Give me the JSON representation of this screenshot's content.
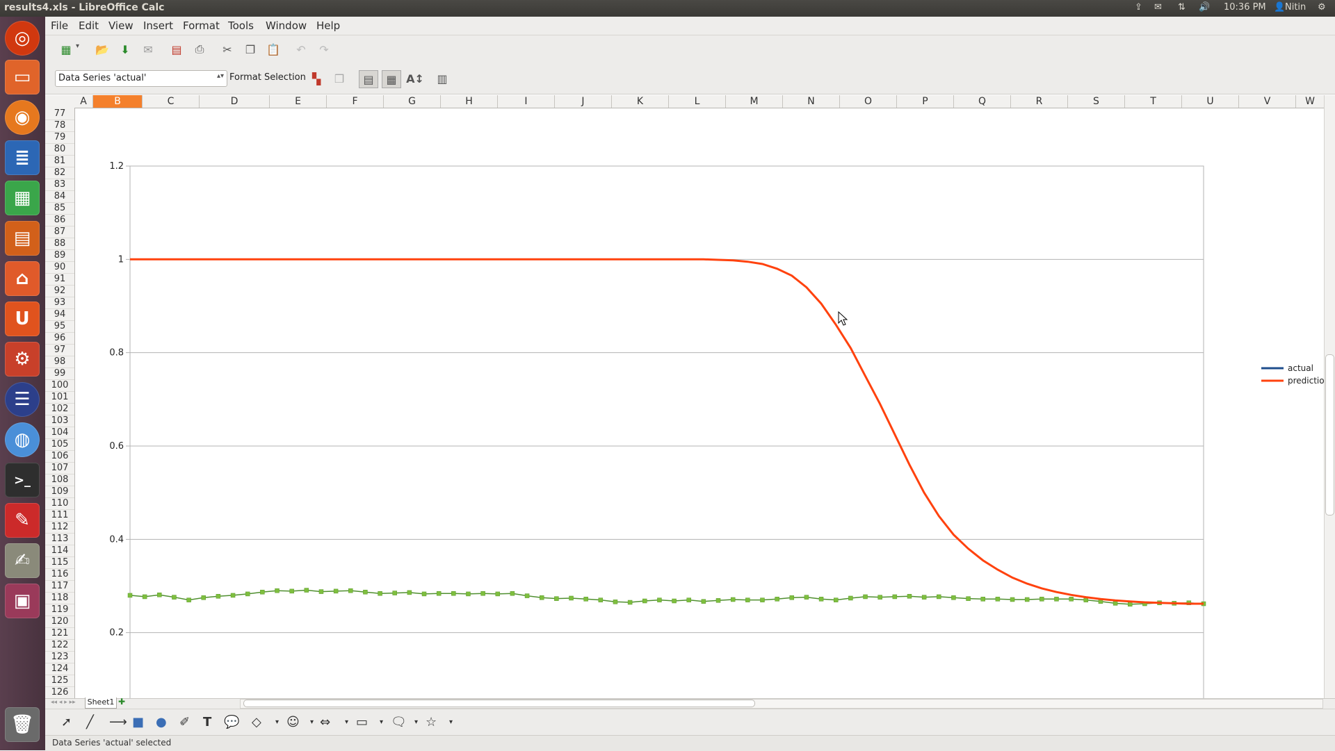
{
  "window": {
    "title": "results4.xls - LibreOffice Calc"
  },
  "tray": {
    "time": "10:36 PM",
    "user": "Nitin"
  },
  "menubar": [
    "File",
    "Edit",
    "View",
    "Insert",
    "Format",
    "Tools",
    "Window",
    "Help"
  ],
  "toolbar2": {
    "selected_series": "Data Series 'actual'",
    "format_selection_label": "Format Selection"
  },
  "columns": [
    "A",
    "B",
    "C",
    "D",
    "E",
    "F",
    "G",
    "H",
    "I",
    "J",
    "K",
    "L",
    "M",
    "N",
    "O",
    "P",
    "Q",
    "R",
    "S",
    "T",
    "U",
    "V",
    "W"
  ],
  "selected_column": "B",
  "rows": [
    "77",
    "78",
    "79",
    "80",
    "81",
    "82",
    "83",
    "84",
    "85",
    "86",
    "87",
    "88",
    "89",
    "90",
    "91",
    "92",
    "93",
    "94",
    "95",
    "96",
    "97",
    "98",
    "99",
    "100",
    "101",
    "102",
    "103",
    "104",
    "105",
    "106",
    "107",
    "108",
    "109",
    "110",
    "111",
    "112",
    "113",
    "114",
    "115",
    "116",
    "117",
    "118",
    "119",
    "120",
    "121",
    "122",
    "123",
    "124",
    "125",
    "126"
  ],
  "sheet_tab": "Sheet1",
  "status": {
    "text": "Data Series 'actual' selected"
  },
  "colors": {
    "actual": "#1f4e8c",
    "prediction": "#ff420e",
    "marker": "#7fbf3f",
    "accent": "#f4802c"
  },
  "launcher_icons": [
    "ubuntu-dash-icon",
    "files-icon",
    "firefox-icon",
    "writer-icon",
    "calc-icon",
    "impress-icon",
    "software-center-icon",
    "ubuntu-one-icon",
    "system-settings-icon",
    "eclipse-icon",
    "chromium-icon",
    "terminal-icon",
    "pdf-viewer-icon",
    "text-editor-icon",
    "workspace-switcher-icon",
    "trash-icon"
  ],
  "chart_data": {
    "type": "line",
    "title": "",
    "xlabel": "",
    "ylabel": "",
    "ylim": [
      0,
      1.2
    ],
    "yticks": [
      "0",
      "0.2",
      "0.4",
      "0.6",
      "0.8",
      "1",
      "1.2"
    ],
    "grid": true,
    "legend_position": "right",
    "series": [
      {
        "name": "actual",
        "values": [
          0.28,
          0.277,
          0.281,
          0.276,
          0.27,
          0.275,
          0.278,
          0.28,
          0.283,
          0.287,
          0.29,
          0.289,
          0.291,
          0.288,
          0.289,
          0.29,
          0.287,
          0.284,
          0.285,
          0.286,
          0.283,
          0.284,
          0.284,
          0.283,
          0.284,
          0.283,
          0.284,
          0.279,
          0.275,
          0.273,
          0.274,
          0.272,
          0.27,
          0.266,
          0.265,
          0.268,
          0.27,
          0.268,
          0.27,
          0.267,
          0.269,
          0.271,
          0.27,
          0.27,
          0.272,
          0.275,
          0.276,
          0.272,
          0.27,
          0.274,
          0.277,
          0.276,
          0.277,
          0.278,
          0.276,
          0.277,
          0.275,
          0.273,
          0.272,
          0.272,
          0.271,
          0.271,
          0.272,
          0.272,
          0.272,
          0.27,
          0.267,
          0.263,
          0.261,
          0.262,
          0.264,
          0.263,
          0.264,
          0.262
        ]
      },
      {
        "name": "prediction",
        "values": [
          1,
          1,
          1,
          1,
          1,
          1,
          1,
          1,
          1,
          1,
          1,
          1,
          1,
          1,
          1,
          1,
          1,
          1,
          1,
          1,
          1,
          1,
          1,
          1,
          1,
          1,
          1,
          1,
          1,
          1,
          1,
          1,
          1,
          1,
          1,
          1,
          1,
          1,
          1,
          1,
          0.999,
          0.998,
          0.995,
          0.99,
          0.98,
          0.965,
          0.94,
          0.905,
          0.86,
          0.81,
          0.75,
          0.69,
          0.625,
          0.56,
          0.5,
          0.45,
          0.41,
          0.38,
          0.355,
          0.335,
          0.318,
          0.305,
          0.295,
          0.287,
          0.281,
          0.276,
          0.272,
          0.269,
          0.267,
          0.265,
          0.264,
          0.263,
          0.262,
          0.262
        ]
      }
    ]
  }
}
